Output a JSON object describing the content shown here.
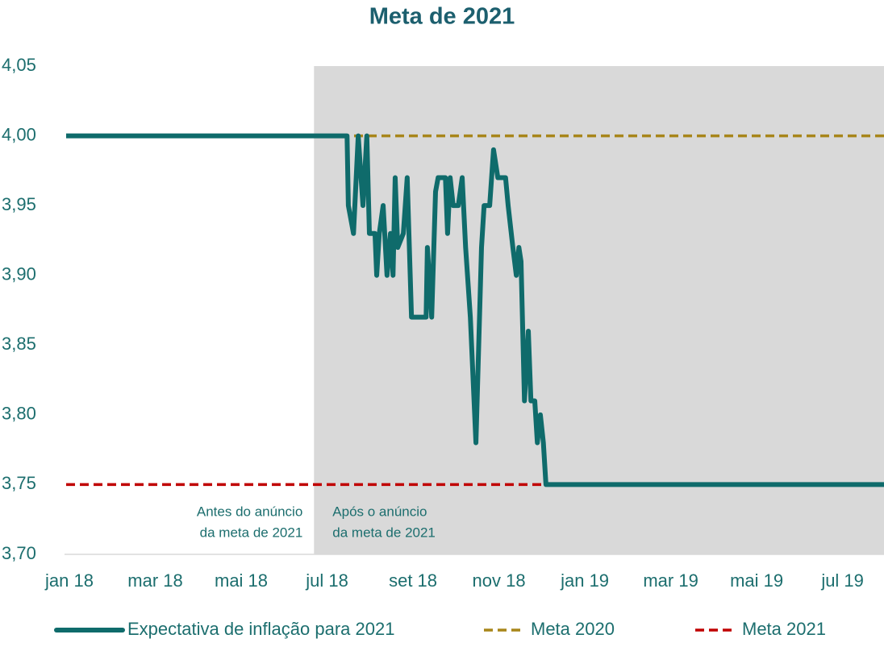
{
  "chart_data": {
    "type": "line",
    "title": "Meta de 2021",
    "xlim": [
      0,
      19.04
    ],
    "xticks": [
      {
        "value": 0,
        "label": "jan 18"
      },
      {
        "value": 2,
        "label": "mar 18"
      },
      {
        "value": 4,
        "label": "mai 18"
      },
      {
        "value": 6,
        "label": "jul 18"
      },
      {
        "value": 8,
        "label": "set 18"
      },
      {
        "value": 10,
        "label": "nov 18"
      },
      {
        "value": 12,
        "label": "jan 19"
      },
      {
        "value": 14,
        "label": "mar 19"
      },
      {
        "value": 16,
        "label": "mai 19"
      },
      {
        "value": 18,
        "label": "jul 19"
      }
    ],
    "ylim": [
      3.7,
      4.05
    ],
    "yticks": [
      {
        "value": 3.7,
        "label": "3,70"
      },
      {
        "value": 3.75,
        "label": "3,75"
      },
      {
        "value": 3.8,
        "label": "3,80"
      },
      {
        "value": 3.85,
        "label": "3,85"
      },
      {
        "value": 3.9,
        "label": "3,90"
      },
      {
        "value": 3.95,
        "label": "3,95"
      },
      {
        "value": 4.0,
        "label": "4,00"
      },
      {
        "value": 4.05,
        "label": "4,05"
      }
    ],
    "shaded_region": [
      5.77,
      19.04
    ],
    "annotations": [
      {
        "text": [
          "Antes do anúncio",
          "da meta de 2021"
        ],
        "side": "left"
      },
      {
        "text": [
          "Após o anúncio",
          "da meta de 2021"
        ],
        "side": "right"
      }
    ],
    "legend": "bottom",
    "series": [
      {
        "name": "Expectativa de inflação para 2021",
        "color": "#0f6b6b",
        "dashed": false,
        "x": [
          0,
          6.54,
          6.57,
          6.69,
          6.8,
          6.91,
          7.0,
          7.06,
          7.19,
          7.23,
          7.29,
          7.38,
          7.47,
          7.55,
          7.61,
          7.66,
          7.72,
          7.85,
          7.94,
          8.04,
          8.38,
          8.41,
          8.51,
          8.6,
          8.66,
          8.83,
          8.88,
          8.94,
          9.01,
          9.13,
          9.22,
          9.3,
          9.41,
          9.54,
          9.67,
          9.73,
          9.86,
          9.95,
          10.05,
          10.23,
          10.29,
          10.4,
          10.48,
          10.54,
          10.59,
          10.67,
          10.76,
          10.82,
          10.91,
          10.97,
          11.04,
          11.11,
          11.17,
          19.04
        ],
        "values": [
          4.0,
          4.0,
          3.95,
          3.93,
          4.0,
          3.95,
          4.0,
          3.93,
          3.93,
          3.9,
          3.93,
          3.95,
          3.9,
          3.93,
          3.9,
          3.97,
          3.92,
          3.93,
          3.97,
          3.87,
          3.87,
          3.92,
          3.87,
          3.96,
          3.97,
          3.97,
          3.93,
          3.97,
          3.95,
          3.95,
          3.97,
          3.92,
          3.87,
          3.78,
          3.92,
          3.95,
          3.95,
          3.99,
          3.97,
          3.97,
          3.95,
          3.92,
          3.9,
          3.92,
          3.91,
          3.81,
          3.86,
          3.81,
          3.81,
          3.78,
          3.8,
          3.78,
          3.75,
          3.75
        ]
      },
      {
        "name": "Meta 2020",
        "color": "#a8861a",
        "dashed": true,
        "x": [
          0,
          19.04
        ],
        "values": [
          4.0,
          4.0
        ]
      },
      {
        "name": "Meta 2021",
        "color": "#c00000",
        "dashed": true,
        "x": [
          0,
          19.04
        ],
        "values": [
          3.75,
          3.75
        ]
      }
    ]
  }
}
